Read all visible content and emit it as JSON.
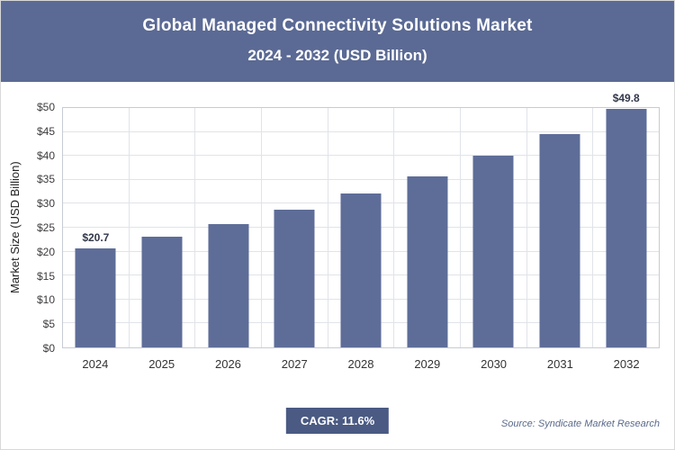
{
  "header": {
    "title_line1": "Global Managed Connectivity Solutions Market",
    "title_line2": "2024 - 2032 (USD Billion)"
  },
  "chart_data": {
    "type": "bar",
    "categories": [
      "2024",
      "2025",
      "2026",
      "2027",
      "2028",
      "2029",
      "2030",
      "2031",
      "2032"
    ],
    "values": [
      20.7,
      23.1,
      25.8,
      28.8,
      32.1,
      35.8,
      40.0,
      44.6,
      49.8
    ],
    "value_labels": [
      "$20.7",
      "",
      "",
      "",
      "",
      "",
      "",
      "",
      "$49.8"
    ],
    "title": "Global Managed Connectivity Solutions Market",
    "subtitle": "2024 - 2032 (USD Billion)",
    "xlabel": "",
    "ylabel": "Market Size (USD Billion)",
    "ylim": [
      0,
      50
    ],
    "yticks": [
      "$0",
      "$5",
      "$10",
      "$15",
      "$20",
      "$25",
      "$30",
      "$35",
      "$40",
      "$45",
      "$50"
    ],
    "grid": true,
    "legend": false,
    "bar_color": "#5e6d98"
  },
  "footer": {
    "cagr_label": "CAGR: 11.6%",
    "source": "Source: Syndicate Market Research"
  }
}
